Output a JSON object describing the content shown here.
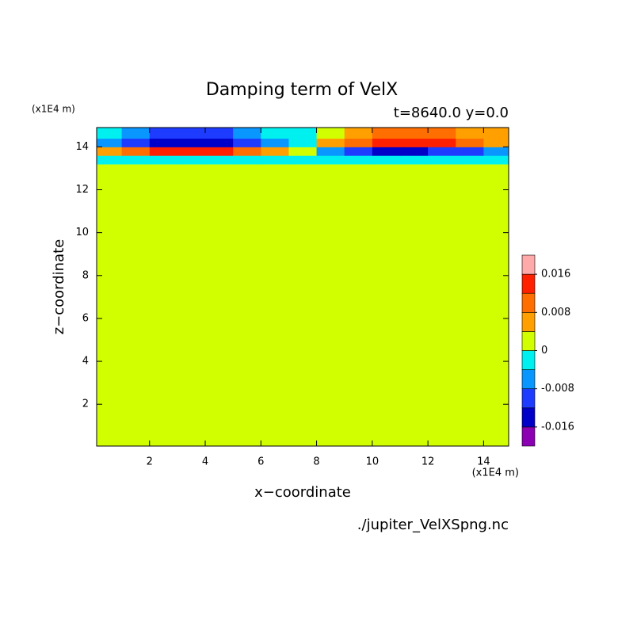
{
  "chart_data": {
    "type": "contour",
    "title": "Damping term of VelX",
    "subtitle": "t=8640.0 y=0.0",
    "x_label": "x−coordinate",
    "y_label": "z−coordinate",
    "x_unit": "(x1E4 m)",
    "y_unit": "(x1E4 m)",
    "source": "./jupiter_VelXSpng.nc",
    "xlim": [
      0.1,
      14.9
    ],
    "ylim": [
      0.05,
      14.9
    ],
    "xticks": [
      2,
      4,
      6,
      8,
      10,
      12,
      14
    ],
    "yticks": [
      2,
      4,
      6,
      8,
      10,
      12,
      14
    ],
    "x": [
      0.5,
      1.5,
      2.5,
      3.5,
      4.5,
      5.5,
      6.5,
      7.5,
      8.5,
      9.5,
      10.5,
      11.5,
      12.5,
      13.5,
      14.5
    ],
    "y": [
      13.0,
      13.4,
      13.8,
      14.2,
      14.6
    ],
    "z": [
      [
        0.001,
        0.001,
        0.001,
        0.001,
        0.001,
        0.001,
        0.001,
        0.001,
        0.001,
        0.001,
        0.001,
        0.001,
        0.001,
        0.001,
        0.001
      ],
      [
        -0.002,
        -0.002,
        -0.002,
        -0.002,
        -0.002,
        -0.002,
        -0.002,
        -0.001,
        -0.002,
        -0.002,
        -0.002,
        -0.002,
        -0.002,
        -0.002,
        -0.002
      ],
      [
        0.006,
        0.01,
        0.013,
        0.013,
        0.012,
        0.01,
        0.006,
        0.001,
        -0.006,
        -0.012,
        -0.013,
        -0.013,
        -0.012,
        -0.009,
        -0.005
      ],
      [
        -0.006,
        -0.011,
        -0.014,
        -0.015,
        -0.013,
        -0.01,
        -0.005,
        -0.001,
        0.006,
        0.01,
        0.013,
        0.014,
        0.013,
        0.01,
        0.006
      ],
      [
        -0.003,
        -0.007,
        -0.01,
        -0.011,
        -0.009,
        -0.007,
        -0.003,
        -0.001,
        0.003,
        0.006,
        0.009,
        0.01,
        0.009,
        0.007,
        0.004
      ]
    ],
    "levels": [
      -0.02,
      -0.016,
      -0.012,
      -0.008,
      -0.004,
      0,
      0.004,
      0.008,
      0.012,
      0.016,
      0.02
    ],
    "colors": [
      "#8c00b4",
      "#0000c8",
      "#1e3cff",
      "#0a96ff",
      "#00f0f0",
      "#d2ff00",
      "#ffa000",
      "#ff6e00",
      "#ff2000",
      "#ffaaaa"
    ],
    "colorbar_ticks": [
      -0.016,
      -0.008,
      0,
      0.008,
      0.016
    ]
  }
}
